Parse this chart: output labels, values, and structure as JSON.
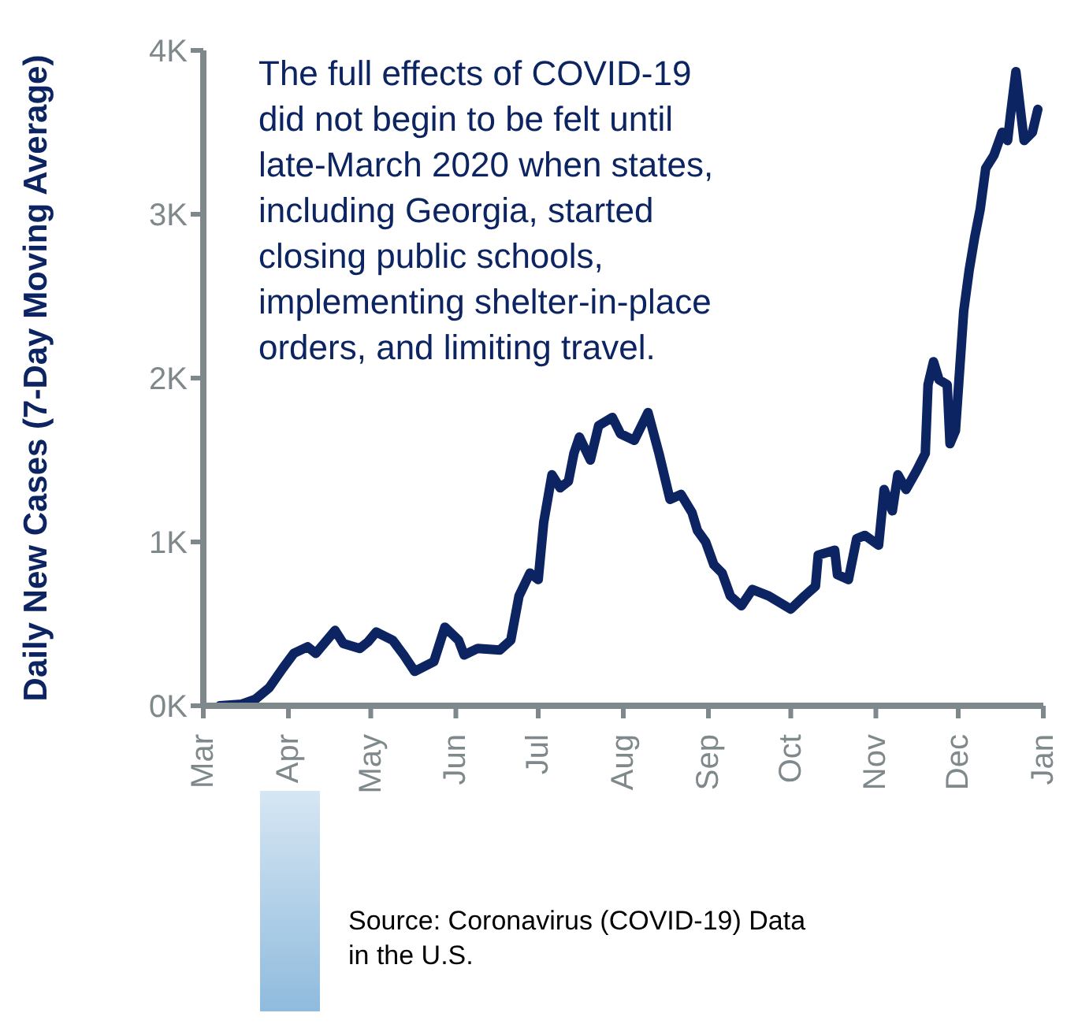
{
  "chart_data": {
    "type": "line",
    "ylabel": "Daily New Cases (7-Day Moving Average)",
    "annotations": [
      "The full effects of COVID-19 did not begin to be felt until late-March 2020 when states, including Georgia, started closing public schools, implementing shelter-in-place orders, and limiting travel.",
      "Source: Coronavirus (COVID-19) Data in the U.S."
    ],
    "x": [
      "2020-03-07",
      "2020-03-15",
      "2020-03-20",
      "2020-03-25",
      "2020-03-30",
      "2020-04-03",
      "2020-04-08",
      "2020-04-11",
      "2020-04-18",
      "2020-04-21",
      "2020-04-27",
      "2020-04-30",
      "2020-05-03",
      "2020-05-09",
      "2020-05-13",
      "2020-05-17",
      "2020-05-24",
      "2020-05-28",
      "2020-06-02",
      "2020-06-04",
      "2020-06-09",
      "2020-06-17",
      "2020-06-21",
      "2020-06-24",
      "2020-06-28",
      "2020-07-01",
      "2020-07-03",
      "2020-07-06",
      "2020-07-09",
      "2020-07-12",
      "2020-07-14",
      "2020-07-16",
      "2020-07-20",
      "2020-07-23",
      "2020-07-28",
      "2020-07-31",
      "2020-08-05",
      "2020-08-10",
      "2020-08-14",
      "2020-08-18",
      "2020-08-22",
      "2020-08-26",
      "2020-08-28",
      "2020-08-31",
      "2020-09-03",
      "2020-09-06",
      "2020-09-09",
      "2020-09-13",
      "2020-09-17",
      "2020-09-23",
      "2020-10-01",
      "2020-10-06",
      "2020-10-10",
      "2020-10-11",
      "2020-10-17",
      "2020-10-18",
      "2020-10-22",
      "2020-10-25",
      "2020-10-28",
      "2020-11-02",
      "2020-11-04",
      "2020-11-07",
      "2020-11-09",
      "2020-11-12",
      "2020-11-16",
      "2020-11-19",
      "2020-11-20",
      "2020-11-22",
      "2020-11-24",
      "2020-11-27",
      "2020-11-28",
      "2020-11-30",
      "2020-12-03",
      "2020-12-05",
      "2020-12-07",
      "2020-12-09",
      "2020-12-11",
      "2020-12-14",
      "2020-12-17",
      "2020-12-19",
      "2020-12-20",
      "2020-12-22",
      "2020-12-25",
      "2020-12-28",
      "2020-12-30"
    ],
    "series": [
      {
        "color": "#0c2461",
        "values": [
          0,
          10,
          40,
          110,
          230,
          320,
          360,
          320,
          460,
          380,
          350,
          390,
          450,
          400,
          310,
          210,
          270,
          480,
          400,
          310,
          350,
          340,
          400,
          670,
          810,
          770,
          1120,
          1410,
          1330,
          1370,
          1540,
          1640,
          1500,
          1710,
          1760,
          1660,
          1620,
          1790,
          1540,
          1260,
          1290,
          1180,
          1070,
          1000,
          860,
          810,
          670,
          610,
          710,
          670,
          590,
          670,
          730,
          920,
          950,
          800,
          770,
          1020,
          1040,
          980,
          1320,
          1190,
          1410,
          1320,
          1440,
          1540,
          1960,
          2100,
          1990,
          1960,
          1600,
          1680,
          2410,
          2660,
          2860,
          3030,
          3280,
          3360,
          3500,
          3450,
          3600,
          3870,
          3450,
          3500,
          3640
        ]
      }
    ],
    "xlim": [
      "2020-03-01",
      "2021-01-01"
    ],
    "xticks": [
      {
        "value": "2020-03-01",
        "label": "Mar"
      },
      {
        "value": "2020-04-01",
        "label": "Apr"
      },
      {
        "value": "2020-05-01",
        "label": "May"
      },
      {
        "value": "2020-06-01",
        "label": "Jun"
      },
      {
        "value": "2020-07-01",
        "label": "Jul"
      },
      {
        "value": "2020-08-01",
        "label": "Aug"
      },
      {
        "value": "2020-09-01",
        "label": "Sep"
      },
      {
        "value": "2020-10-01",
        "label": "Oct"
      },
      {
        "value": "2020-11-01",
        "label": "Nov"
      },
      {
        "value": "2020-12-01",
        "label": "Dec"
      },
      {
        "value": "2021-01-01",
        "label": "Jan"
      }
    ],
    "ylim": [
      0,
      4000
    ],
    "yticks": [
      {
        "value": 0,
        "label": "0K"
      },
      {
        "value": 1000,
        "label": "1K"
      },
      {
        "value": 2000,
        "label": "2K"
      },
      {
        "value": 3000,
        "label": "3K"
      },
      {
        "value": 4000,
        "label": "4K"
      }
    ],
    "grid": false,
    "legend": false,
    "marker": "none",
    "line_style": "solid"
  }
}
